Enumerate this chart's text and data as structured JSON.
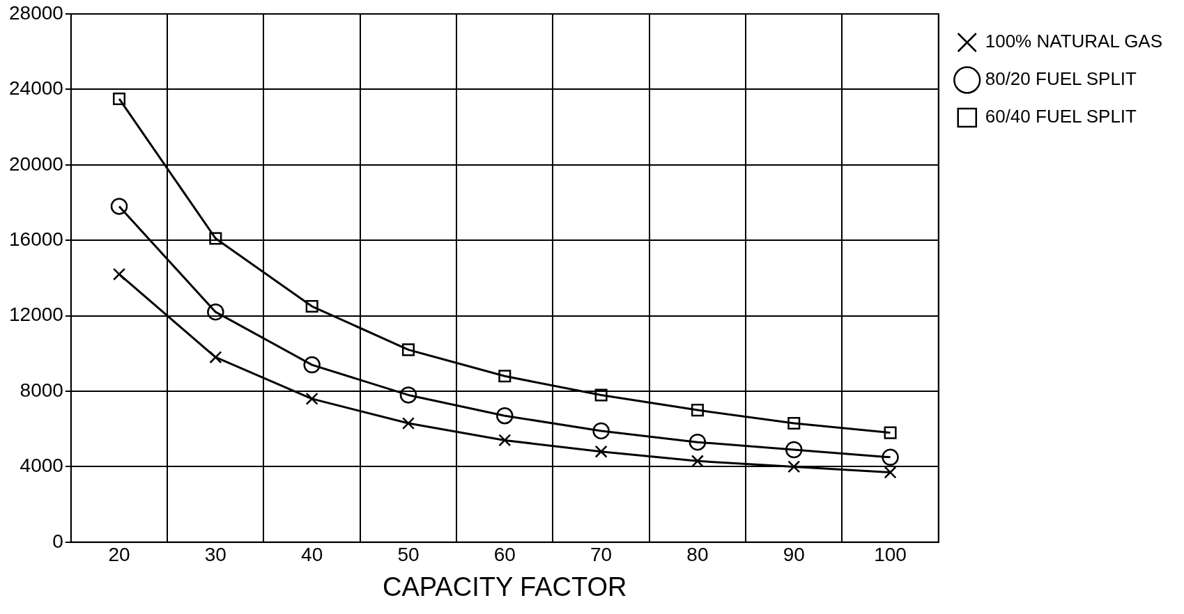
{
  "chart_data": {
    "type": "line",
    "xlabel": "CAPACITY FACTOR",
    "categories": [
      "20",
      "30",
      "40",
      "50",
      "60",
      "70",
      "80",
      "90",
      "100"
    ],
    "series": [
      {
        "name": "100% NATURAL GAS",
        "color": "#000000",
        "marker": "cross",
        "values": [
          14200,
          9800,
          7600,
          6300,
          5400,
          4800,
          4300,
          4000,
          3700
        ]
      },
      {
        "name": "80/20 FUEL SPLIT",
        "color": "#000000",
        "marker": "circle",
        "values": [
          17800,
          12200,
          9400,
          7800,
          6700,
          5900,
          5300,
          4900,
          4500
        ]
      },
      {
        "name": "60/40 FUEL SPLIT",
        "color": "#000000",
        "marker": "square",
        "values": [
          23500,
          16100,
          12500,
          10200,
          8800,
          7800,
          7000,
          6300,
          5800
        ]
      }
    ],
    "ylim": [
      0,
      28000
    ],
    "yticks": [
      0,
      4000,
      8000,
      12000,
      16000,
      20000,
      24000,
      28000
    ],
    "grid": true,
    "legend": "top right",
    "line_style": "solid"
  }
}
